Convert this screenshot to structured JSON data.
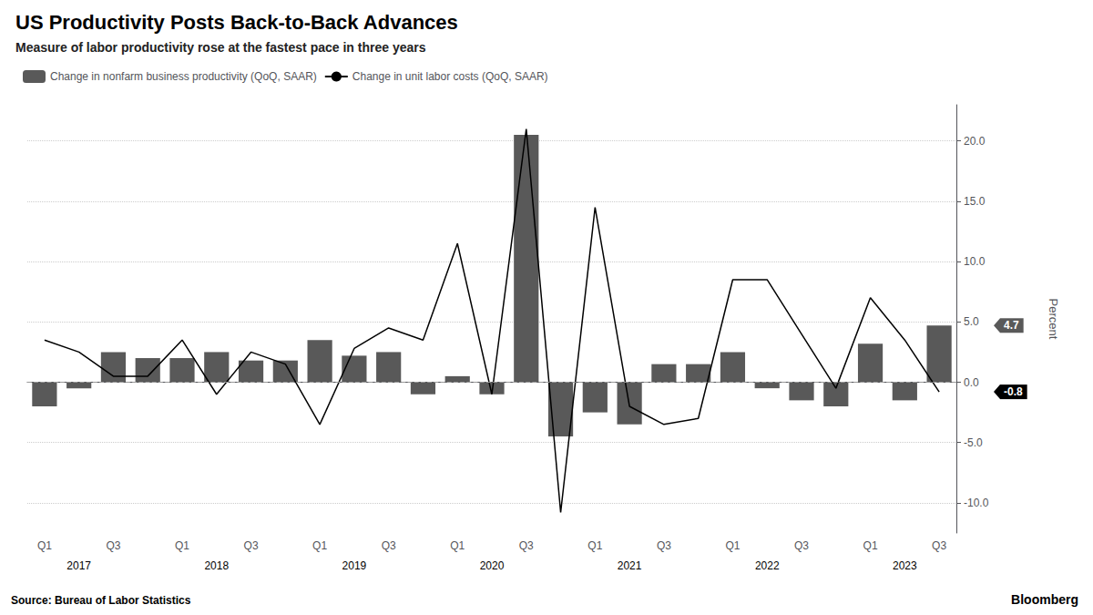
{
  "chart_data": {
    "type": "bar",
    "title": "US Productivity Posts Back-to-Back Advances",
    "subtitle": "Measure of labor productivity rose at the fastest pace in three years",
    "source": "Source: Bureau of Labor Statistics",
    "credit": "Bloomberg",
    "y_label": "Percent",
    "categories": [
      "Q1",
      null,
      "Q3",
      null,
      "Q1",
      null,
      "Q3",
      null,
      "Q1",
      null,
      "Q3",
      null,
      "Q1",
      null,
      "Q3",
      null,
      "Q1",
      null,
      "Q3",
      null,
      "Q1",
      null,
      "Q3",
      null,
      "Q1",
      null,
      "Q3"
    ],
    "series": [
      {
        "name": "Change in nonfarm business productivity (QoQ, SAAR)",
        "type": "bar",
        "color": "#595959",
        "values": [
          -2.0,
          -0.5,
          2.5,
          2.0,
          2.0,
          2.5,
          1.8,
          1.8,
          3.5,
          2.2,
          2.5,
          -1.0,
          0.5,
          -1.0,
          20.5,
          -4.5,
          -2.5,
          -3.5,
          1.5,
          1.5,
          2.5,
          -0.5,
          -1.5,
          -2.0,
          3.2,
          -1.5,
          4.7
        ]
      },
      {
        "name": "Change in unit labor costs (QoQ, SAAR)",
        "type": "line",
        "color": "#000000",
        "values": [
          3.5,
          2.5,
          0.5,
          0.5,
          3.5,
          -1.0,
          2.5,
          1.5,
          -3.5,
          2.8,
          4.5,
          3.5,
          11.5,
          -1.0,
          21.0,
          -10.8,
          14.5,
          -2.0,
          -3.5,
          -3.0,
          8.5,
          8.5,
          4.0,
          -0.5,
          7.0,
          3.5,
          -0.8
        ]
      }
    ],
    "ylim": [
      -12.5,
      23.0
    ],
    "yticks": [
      {
        "value": -10,
        "label": "-10.0"
      },
      {
        "value": -5,
        "label": "-5.0"
      },
      {
        "value": 0,
        "label": "0.0"
      },
      {
        "value": 5,
        "label": "5.0"
      },
      {
        "value": 10,
        "label": "10.0"
      },
      {
        "value": 15,
        "label": "15.0"
      },
      {
        "value": 20,
        "label": "20.0"
      }
    ],
    "grid": true,
    "legend": "upper left",
    "hlines": [
      {
        "y": 0,
        "line_style": "dashed",
        "color": "#999999"
      }
    ],
    "annotations": [
      {
        "text": "2017",
        "x": 1
      },
      {
        "text": "2018",
        "x": 5
      },
      {
        "text": "2019",
        "x": 9
      },
      {
        "text": "2020",
        "x": 13
      },
      {
        "text": "2021",
        "x": 17
      },
      {
        "text": "2022",
        "x": 21
      },
      {
        "text": "2023",
        "x": 25
      },
      {
        "text": "4.7",
        "y": 4.7,
        "color": "#595959"
      },
      {
        "text": "-0.8",
        "y": -0.8,
        "color": "#000000"
      }
    ]
  }
}
